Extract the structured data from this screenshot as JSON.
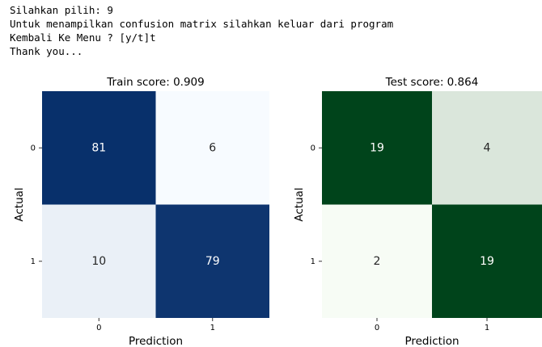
{
  "console": [
    "Silahkan pilih: 9",
    "Untuk menampilkan confusion matrix silahkan keluar dari program",
    "Kembali Ke Menu ? [y/t]t",
    "Thank you..."
  ],
  "chart_data": [
    {
      "type": "heatmap",
      "title": "Train score: 0.909",
      "xlabel": "Prediction",
      "ylabel": "Actual",
      "x_categories": [
        "0",
        "1"
      ],
      "y_categories": [
        "0",
        "1"
      ],
      "values": [
        [
          81,
          6
        ],
        [
          10,
          79
        ]
      ],
      "color_range": [
        "#f7fbff",
        "#08306b"
      ]
    },
    {
      "type": "heatmap",
      "title": "Test score: 0.864",
      "xlabel": "Prediction",
      "ylabel": "Actual",
      "x_categories": [
        "0",
        "1"
      ],
      "y_categories": [
        "0",
        "1"
      ],
      "values": [
        [
          19,
          4
        ],
        [
          2,
          19
        ]
      ],
      "color_range": [
        "#f7fcf5",
        "#00441b"
      ]
    }
  ]
}
